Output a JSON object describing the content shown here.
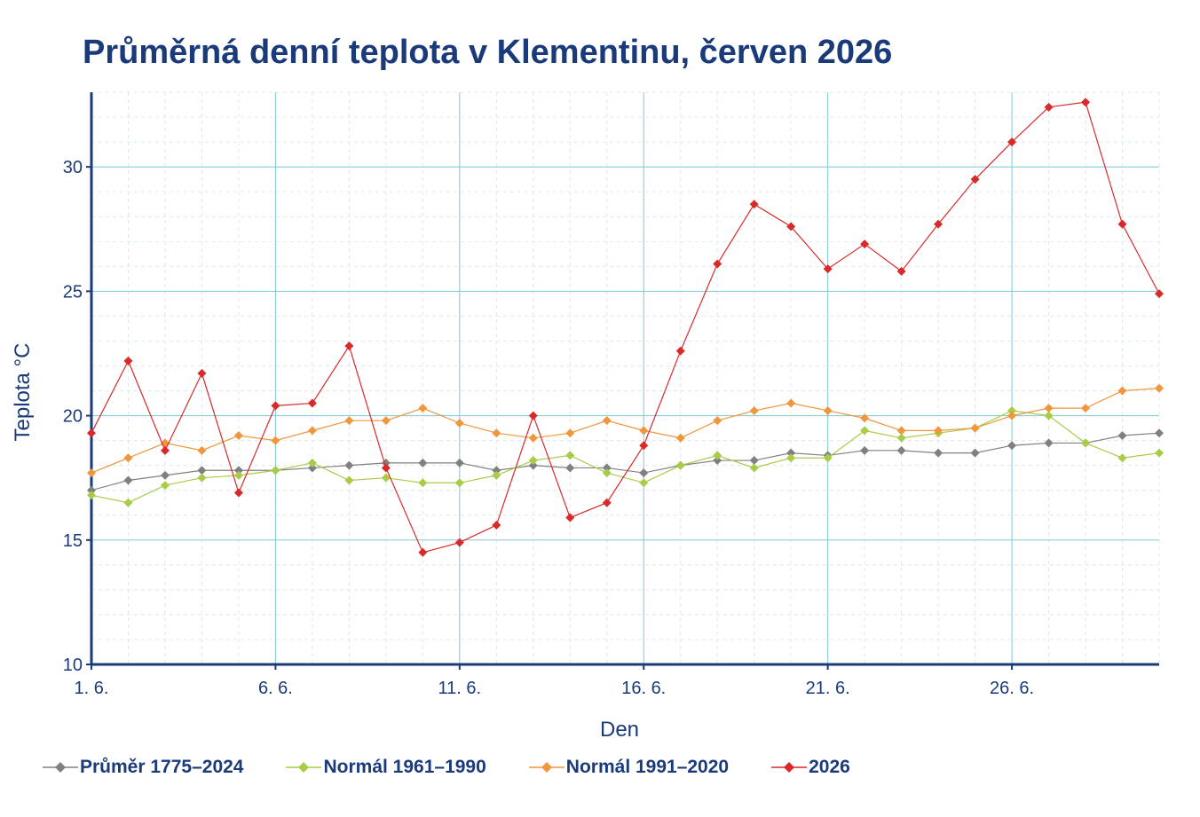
{
  "chart_data": {
    "type": "line",
    "title": "Průměrná denní teplota v Klementinu, červen 2026",
    "xlabel": "Den",
    "ylabel": "Teplota  °C",
    "ylim": [
      10,
      33
    ],
    "xlim": [
      1,
      30
    ],
    "yticks": [
      10,
      15,
      20,
      25,
      30
    ],
    "xticks": [
      1,
      6,
      11,
      16,
      21,
      26
    ],
    "xtick_labels": [
      "1. 6.",
      "6. 6.",
      "11. 6.",
      "16. 6.",
      "21. 6.",
      "26. 6."
    ],
    "grid": true,
    "legend_position": "bottom",
    "x": [
      1,
      2,
      3,
      4,
      5,
      6,
      7,
      8,
      9,
      10,
      11,
      12,
      13,
      14,
      15,
      16,
      17,
      18,
      19,
      20,
      21,
      22,
      23,
      24,
      25,
      26,
      27,
      28,
      29,
      30
    ],
    "series": [
      {
        "name": "Průměr 1775–2024",
        "color": "#808080",
        "values": [
          17.0,
          17.4,
          17.6,
          17.8,
          17.8,
          17.8,
          17.9,
          18.0,
          18.1,
          18.1,
          18.1,
          17.8,
          18.0,
          17.9,
          17.9,
          17.7,
          18.0,
          18.2,
          18.2,
          18.5,
          18.4,
          18.6,
          18.6,
          18.5,
          18.5,
          18.8,
          18.9,
          18.9,
          19.2,
          19.3
        ]
      },
      {
        "name": "Normál 1961–1990",
        "color": "#a8cc48",
        "values": [
          16.8,
          16.5,
          17.2,
          17.5,
          17.6,
          17.8,
          18.1,
          17.4,
          17.5,
          17.3,
          17.3,
          17.6,
          18.2,
          18.4,
          17.7,
          17.3,
          18.0,
          18.4,
          17.9,
          18.3,
          18.3,
          19.4,
          19.1,
          19.3,
          19.5,
          20.2,
          20.0,
          18.9,
          18.3,
          18.5
        ]
      },
      {
        "name": "Normál 1991–2020",
        "color": "#f0963c",
        "values": [
          17.7,
          18.3,
          18.9,
          18.6,
          19.2,
          19.0,
          19.4,
          19.8,
          19.8,
          20.3,
          19.7,
          19.3,
          19.1,
          19.3,
          19.8,
          19.4,
          19.1,
          19.8,
          20.2,
          20.5,
          20.2,
          19.9,
          19.4,
          19.4,
          19.5,
          20.0,
          20.3,
          20.3,
          21.0,
          21.1
        ]
      },
      {
        "name": "2026",
        "color": "#d92a2a",
        "values": [
          19.3,
          22.2,
          18.6,
          21.7,
          16.9,
          20.4,
          20.5,
          22.8,
          17.9,
          14.5,
          14.9,
          15.6,
          20.0,
          15.9,
          16.5,
          18.8,
          22.6,
          26.1,
          28.5,
          27.6,
          25.9,
          26.9,
          25.8,
          27.7,
          29.5,
          31.0,
          32.4,
          32.6,
          27.7,
          24.9
        ]
      }
    ]
  }
}
